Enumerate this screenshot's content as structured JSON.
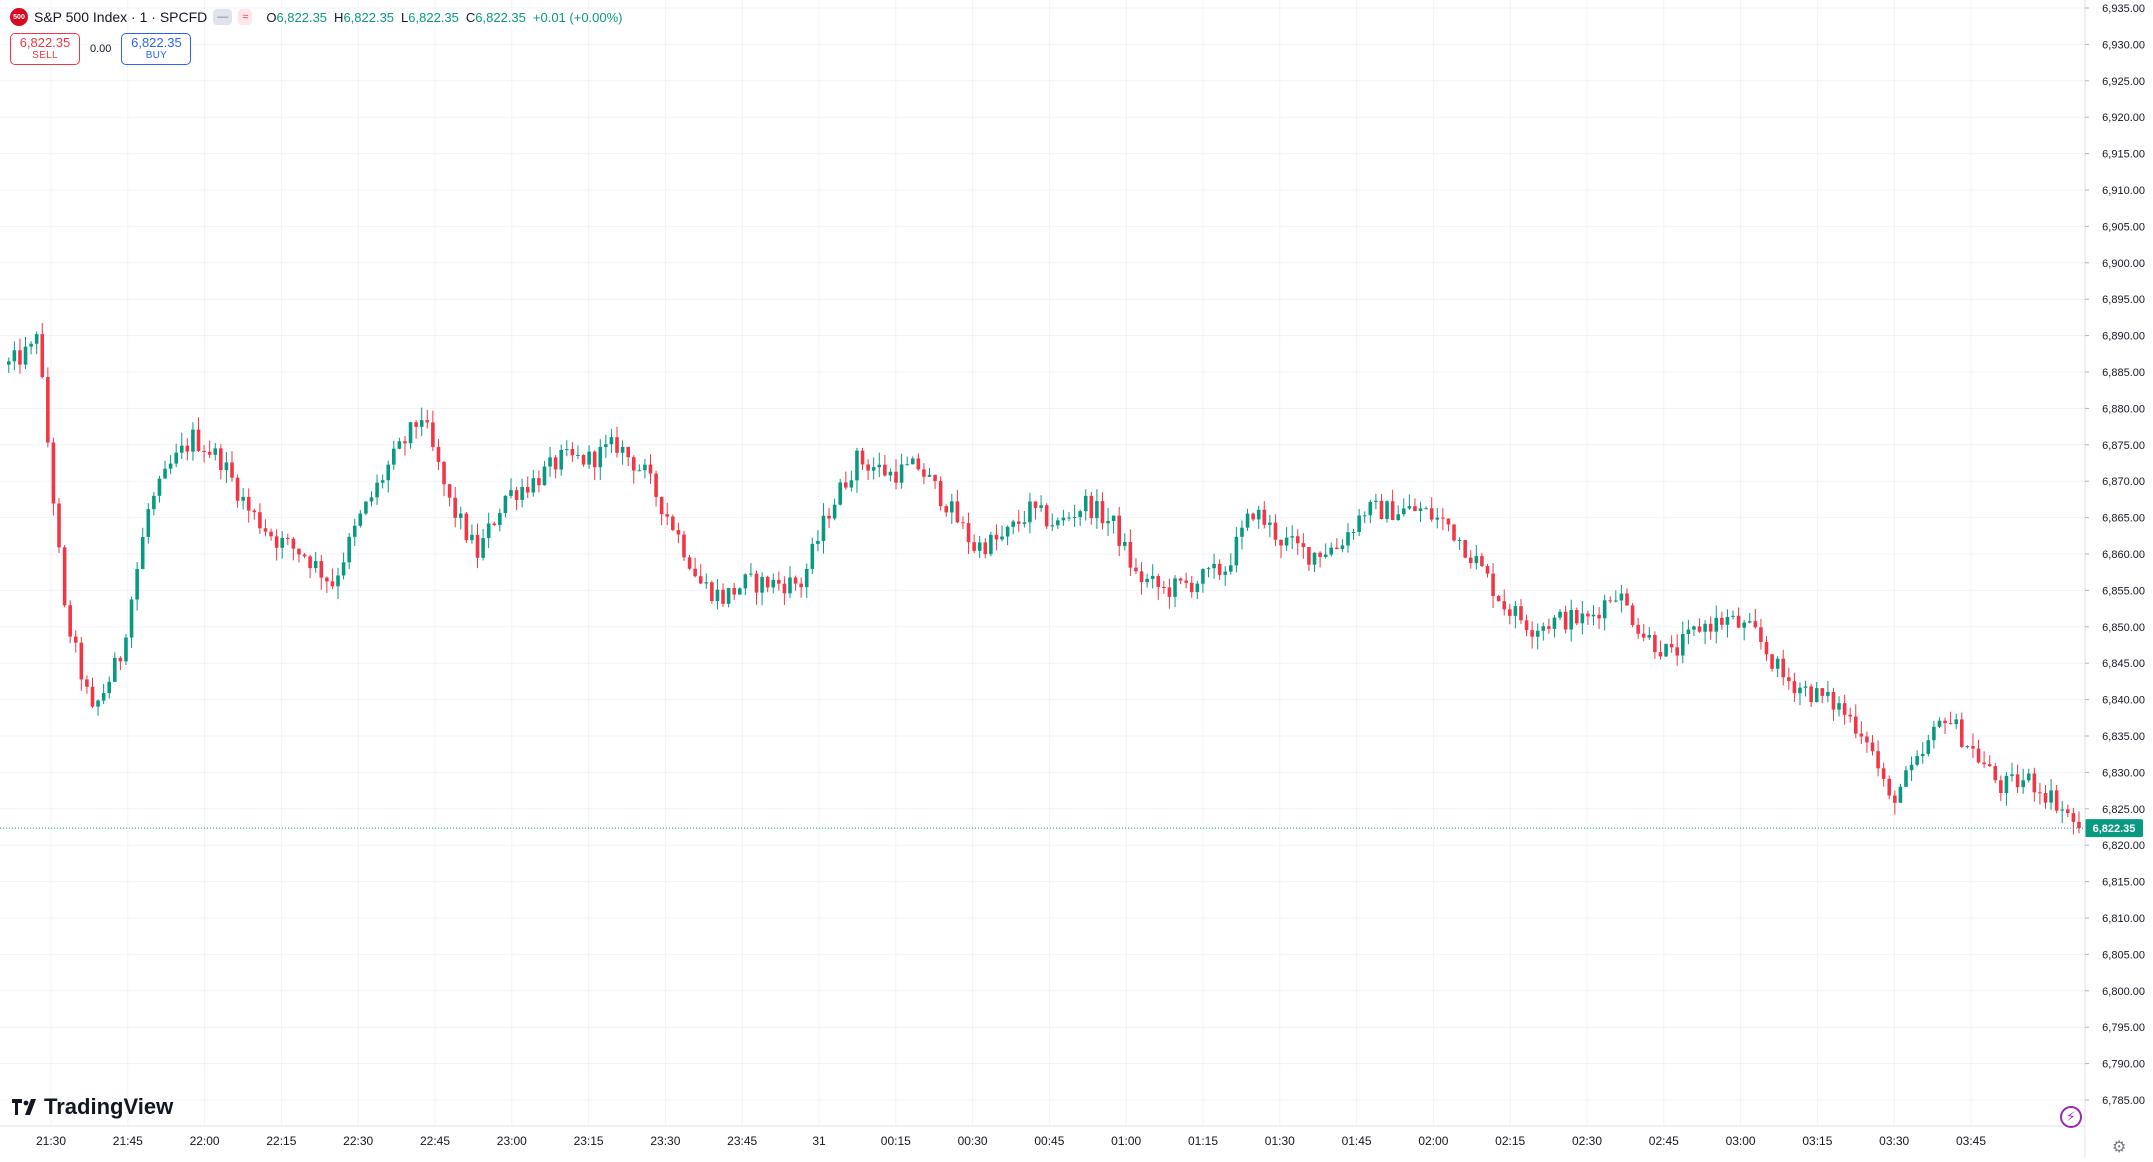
{
  "header": {
    "logo_text": "500",
    "symbol": "S&P 500 Index · 1 · SPCFD",
    "pill_a": "—",
    "pill_b": "≈",
    "ohlc": {
      "o_label": "O",
      "o_value": "6,822.35",
      "h_label": "H",
      "h_value": "6,822.35",
      "l_label": "L",
      "l_value": "6,822.35",
      "c_label": "C",
      "c_value": "6,822.35",
      "change": "+0.01 (+0.00%)"
    }
  },
  "trade": {
    "sell_price": "6,822.35",
    "sell_label": "SELL",
    "spread": "0.00",
    "buy_price": "6,822.35",
    "buy_label": "BUY"
  },
  "brand": {
    "name": "TradingView"
  },
  "controls": {
    "flash_icon": "lightning-icon",
    "settings_icon": "gear-icon"
  },
  "colors": {
    "up": "#089981",
    "down": "#f23645",
    "grid": "#f0f3fa",
    "last_price": "#089981"
  },
  "chart_data": {
    "type": "candlestick",
    "symbol": "S&P 500 Index",
    "interval": "1",
    "exchange": "SPCFD",
    "ylim": [
      6782.5,
      6935
    ],
    "y_ticks": [
      6785,
      6790,
      6795,
      6800,
      6805,
      6810,
      6815,
      6820,
      6825,
      6830,
      6835,
      6840,
      6845,
      6850,
      6855,
      6860,
      6865,
      6870,
      6875,
      6880,
      6885,
      6890,
      6895,
      6900,
      6905,
      6910,
      6915,
      6920,
      6925,
      6930,
      6935
    ],
    "y_tick_labels": [
      "6,785.00",
      "6,790.00",
      "6,795.00",
      "6,800.00",
      "6,805.00",
      "6,810.00",
      "6,815.00",
      "6,820.00",
      "6,825.00",
      "6,830.00",
      "6,835.00",
      "6,840.00",
      "6,845.00",
      "6,850.00",
      "6,855.00",
      "6,860.00",
      "6,865.00",
      "6,870.00",
      "6,875.00",
      "6,880.00",
      "6,885.00",
      "6,890.00",
      "6,895.00",
      "6,900.00",
      "6,905.00",
      "6,910.00",
      "6,915.00",
      "6,920.00",
      "6,925.00",
      "6,930.00",
      "6,935.00"
    ],
    "x_ticks": [
      "21:30",
      "21:45",
      "22:00",
      "22:15",
      "22:30",
      "22:45",
      "23:00",
      "23:15",
      "23:30",
      "23:45",
      "31",
      "00:15",
      "00:30",
      "00:45",
      "01:00",
      "01:15",
      "01:30",
      "01:45",
      "02:00",
      "02:15",
      "02:30",
      "02:45",
      "03:00",
      "03:15",
      "03:30",
      "03:45"
    ],
    "last_price": 6822.35,
    "last_price_label": "6,822.35",
    "close_path": [
      [
        0,
        6886
      ],
      [
        4,
        6888
      ],
      [
        5,
        6891
      ],
      [
        10,
        6852
      ],
      [
        15,
        6838
      ],
      [
        20,
        6846
      ],
      [
        25,
        6866
      ],
      [
        29,
        6872
      ],
      [
        33,
        6876
      ],
      [
        38,
        6873
      ],
      [
        43,
        6866
      ],
      [
        48,
        6862
      ],
      [
        53,
        6860
      ],
      [
        58,
        6856
      ],
      [
        63,
        6865
      ],
      [
        68,
        6872
      ],
      [
        74,
        6879
      ],
      [
        79,
        6867
      ],
      [
        84,
        6860
      ],
      [
        89,
        6868
      ],
      [
        94,
        6870
      ],
      [
        99,
        6873
      ],
      [
        104,
        6873
      ],
      [
        109,
        6875
      ],
      [
        114,
        6871
      ],
      [
        119,
        6864
      ],
      [
        124,
        6856
      ],
      [
        128,
        6854
      ],
      [
        132,
        6856
      ],
      [
        137,
        6856
      ],
      [
        142,
        6856
      ],
      [
        147,
        6866
      ],
      [
        152,
        6873
      ],
      [
        158,
        6871
      ],
      [
        163,
        6872
      ],
      [
        168,
        6867
      ],
      [
        173,
        6861
      ],
      [
        178,
        6862
      ],
      [
        183,
        6866
      ],
      [
        188,
        6864
      ],
      [
        193,
        6867
      ],
      [
        198,
        6864
      ],
      [
        202,
        6857
      ],
      [
        207,
        6855
      ],
      [
        212,
        6856
      ],
      [
        218,
        6858
      ],
      [
        223,
        6866
      ],
      [
        228,
        6862
      ],
      [
        233,
        6860
      ],
      [
        238,
        6861
      ],
      [
        243,
        6866
      ],
      [
        248,
        6866
      ],
      [
        253,
        6866
      ],
      [
        258,
        6864
      ],
      [
        263,
        6859
      ],
      [
        268,
        6853
      ],
      [
        273,
        6850
      ],
      [
        278,
        6851
      ],
      [
        283,
        6851
      ],
      [
        288,
        6855
      ],
      [
        293,
        6849
      ],
      [
        298,
        6846
      ],
      [
        303,
        6850
      ],
      [
        308,
        6851
      ],
      [
        313,
        6849
      ],
      [
        318,
        6843
      ],
      [
        323,
        6841
      ],
      [
        328,
        6839
      ],
      [
        333,
        6835
      ],
      [
        337,
        6826
      ],
      [
        342,
        6831
      ],
      [
        347,
        6838
      ],
      [
        352,
        6833
      ],
      [
        357,
        6828
      ],
      [
        362,
        6829
      ],
      [
        367,
        6826
      ],
      [
        371,
        6822.35
      ]
    ]
  }
}
